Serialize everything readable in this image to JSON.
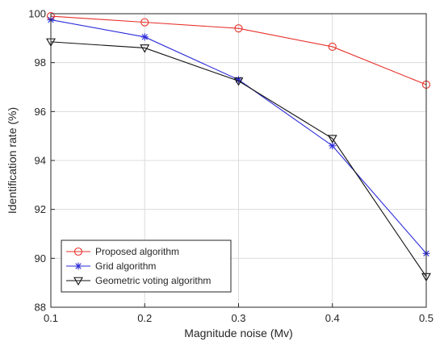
{
  "chart_data": {
    "type": "line",
    "title": "",
    "xlabel": "Magnitude noise (Mv)",
    "ylabel": "Identification rate (%)",
    "x": [
      0.1,
      0.2,
      0.3,
      0.4,
      0.5
    ],
    "xlim": [
      0.1,
      0.5
    ],
    "ylim": [
      88,
      100
    ],
    "xticks": [
      "0.1",
      "0.2",
      "0.3",
      "0.4",
      "0.5"
    ],
    "yticks": [
      "88",
      "90",
      "92",
      "94",
      "96",
      "98",
      "100"
    ],
    "grid": true,
    "legend_position": "bottom-left",
    "series": [
      {
        "name": "Proposed algorithm",
        "values": [
          99.9,
          99.65,
          99.4,
          98.65,
          97.1
        ],
        "color": "#e8312a",
        "marker": "circle"
      },
      {
        "name": "Grid algorithm",
        "values": [
          99.75,
          99.05,
          97.3,
          94.6,
          90.2
        ],
        "color": "#2b2bd9",
        "marker": "asterisk"
      },
      {
        "name": "Geometric voting algorithm",
        "values": [
          98.85,
          98.6,
          97.25,
          94.9,
          89.25
        ],
        "color": "#111111",
        "marker": "triangle-down"
      }
    ]
  }
}
